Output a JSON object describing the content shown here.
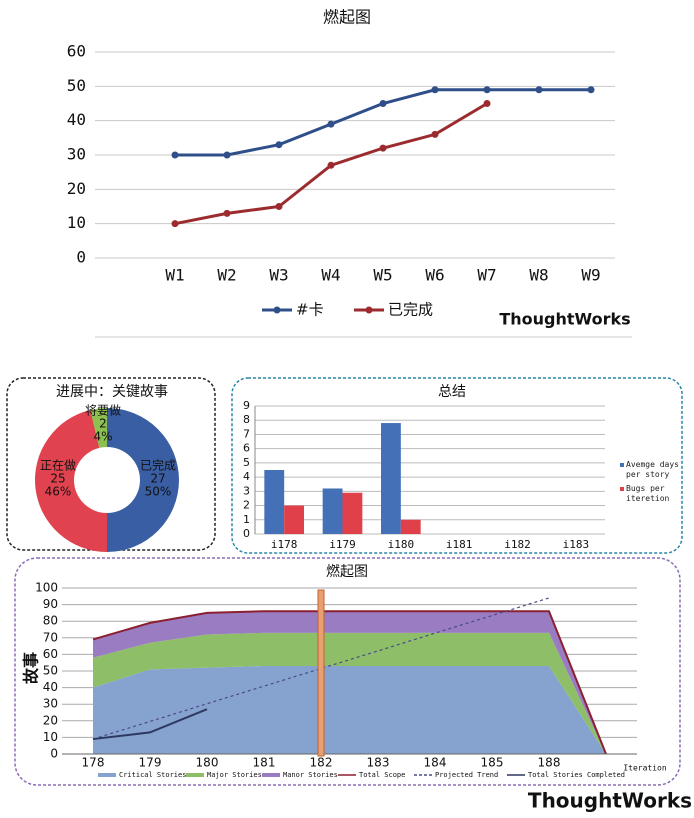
{
  "chart_data": [
    {
      "type": "line",
      "title": "燃起图",
      "categories": [
        "W1",
        "W2",
        "W3",
        "W4",
        "W5",
        "W6",
        "W7",
        "W8",
        "W9"
      ],
      "series": [
        {
          "name": "#卡",
          "color": "#2f4f8a",
          "values": [
            30,
            30,
            33,
            39,
            45,
            49,
            49,
            49,
            49
          ]
        },
        {
          "name": "已完成",
          "color": "#9b2b2f",
          "values": [
            10,
            13,
            15,
            27,
            32,
            36,
            45,
            null,
            null
          ]
        }
      ],
      "ylim": [
        0,
        60
      ],
      "yticks": [
        0,
        10,
        20,
        30,
        40,
        50,
        60
      ],
      "grid": true,
      "legend": "bottom",
      "logo": "ThoughtWorks"
    },
    {
      "type": "donut",
      "title": "进展中：关键故事",
      "categories": [
        "已完成",
        "正在做",
        "将要做"
      ],
      "values": [
        27,
        25,
        2
      ],
      "percent_labels": [
        "50%",
        "46%",
        "4%"
      ],
      "colors": [
        "#3a5ea3",
        "#e0434f",
        "#8cc04f"
      ]
    },
    {
      "type": "bar",
      "title": "总结",
      "categories": [
        "i178",
        "i179",
        "i180",
        "i181",
        "i182",
        "i183"
      ],
      "series": [
        {
          "name": "Avemge days per story",
          "color": "#4470b8",
          "values": [
            4.5,
            3.2,
            7.8,
            null,
            null,
            null
          ]
        },
        {
          "name": "Bugs per iteretion",
          "color": "#e0404a",
          "values": [
            2,
            2.9,
            1,
            null,
            null,
            null
          ]
        }
      ],
      "ylim": [
        0,
        9
      ],
      "yticks": [
        0,
        1,
        2,
        3,
        4,
        5,
        6,
        7,
        8,
        9
      ],
      "grid": true,
      "legend": "right"
    },
    {
      "type": "area",
      "title": "燃起图",
      "ylabel": "故事",
      "xlabel": "Iteration",
      "categories": [
        "178",
        "179",
        "180",
        "181",
        "182",
        "183",
        "184",
        "185",
        "188",
        null
      ],
      "series": [
        {
          "name": "Critical Stories",
          "kind": "area",
          "color": "#86a3cf",
          "values": [
            40,
            51,
            52,
            53,
            53,
            53,
            53,
            53,
            53,
            0
          ]
        },
        {
          "name": "Major Stories",
          "kind": "area",
          "color": "#8fbe69",
          "values": [
            18,
            16,
            20,
            20,
            20,
            20,
            20,
            20,
            20,
            0
          ]
        },
        {
          "name": "Manor Stories",
          "kind": "area",
          "color": "#9a7cc2",
          "values": [
            11,
            12,
            13,
            13,
            13,
            13,
            13,
            13,
            13,
            0
          ]
        },
        {
          "name": "Total Scope",
          "kind": "line",
          "color": "#8b2030",
          "values": [
            69,
            79,
            85,
            86,
            86,
            86,
            86,
            86,
            86,
            0
          ]
        },
        {
          "name": "Projected Trend",
          "kind": "line",
          "dashed": true,
          "color": "#4a4a8a",
          "values": [
            9,
            19.6,
            30.3,
            40.9,
            51.5,
            62.1,
            72.8,
            83.4,
            94,
            null
          ]
        },
        {
          "name": "Total Stories Completed",
          "kind": "line",
          "color": "#2e3760",
          "values": [
            9,
            13,
            27,
            null,
            null,
            null,
            null,
            null,
            null,
            null
          ]
        }
      ],
      "ylim": [
        0,
        100
      ],
      "yticks": [
        0,
        10,
        20,
        30,
        40,
        50,
        60,
        70,
        80,
        90,
        100
      ],
      "grid": true,
      "legend": "bottom"
    }
  ],
  "footer_logo": "ThoughtWorks"
}
